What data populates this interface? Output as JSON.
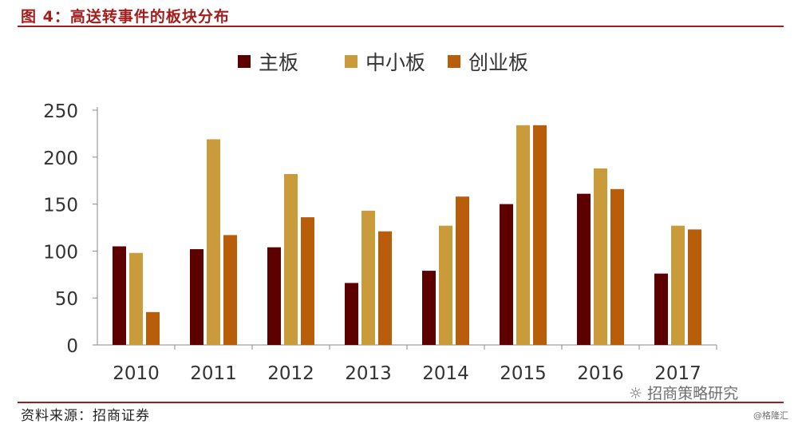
{
  "header": {
    "title": "图 4：高送转事件的板块分布"
  },
  "footer": {
    "source": "资料来源：招商证券",
    "watermark": "招商策略研究",
    "credit": "@格隆汇"
  },
  "chart_data": {
    "type": "bar",
    "title": "",
    "xlabel": "",
    "ylabel": "",
    "categories": [
      "2010",
      "2011",
      "2012",
      "2013",
      "2014",
      "2015",
      "2016",
      "2017"
    ],
    "series": [
      {
        "name": "主板",
        "color": "#5c0000",
        "values": [
          105,
          102,
          104,
          66,
          79,
          150,
          161,
          76
        ]
      },
      {
        "name": "中小板",
        "color": "#c99b3a",
        "values": [
          98,
          219,
          182,
          143,
          127,
          234,
          188,
          127
        ]
      },
      {
        "name": "创业板",
        "color": "#b85d0a",
        "values": [
          35,
          117,
          136,
          121,
          158,
          234,
          166,
          123
        ]
      }
    ],
    "ylim": [
      0,
      250
    ],
    "yticks": [
      0,
      50,
      100,
      150,
      200,
      250
    ],
    "grid": false,
    "legend": "top"
  }
}
